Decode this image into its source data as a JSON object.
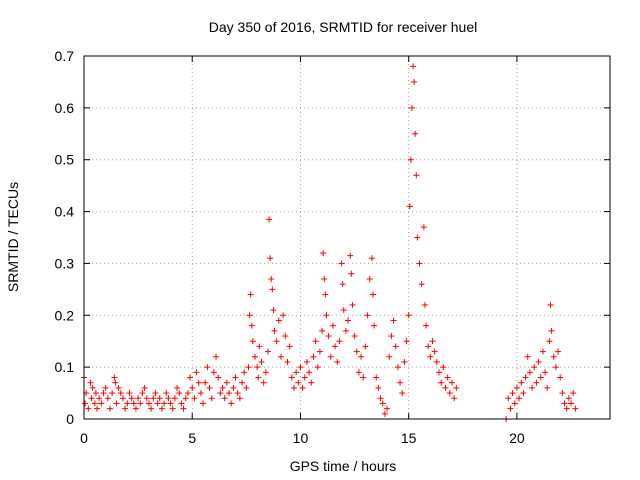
{
  "chart_data": {
    "type": "scatter",
    "title": "Day 350 of 2016, SRMTID for receiver huel",
    "xlabel": "GPS time / hours",
    "ylabel": "SRMTID / TECUs",
    "xlim": [
      0,
      24.3
    ],
    "ylim": [
      0,
      0.7
    ],
    "xticks": [
      0,
      5,
      10,
      15,
      20
    ],
    "yticks": [
      0,
      0.1,
      0.2,
      0.3,
      0.4,
      0.5,
      0.6,
      0.7
    ],
    "xtick_labels": [
      "0",
      "5",
      "10",
      "15",
      "20"
    ],
    "ytick_labels": [
      "0",
      "0.1",
      "0.2",
      "0.3",
      "0.4",
      "0.5",
      "0.6",
      "0.7"
    ],
    "grid": true,
    "marker": "+",
    "marker_color": "#ff0000",
    "series": [
      {
        "name": "SRMTID",
        "points": [
          [
            0.0,
            0.08
          ],
          [
            0.05,
            0.03
          ],
          [
            0.1,
            0.05
          ],
          [
            0.2,
            0.02
          ],
          [
            0.3,
            0.07
          ],
          [
            0.35,
            0.04
          ],
          [
            0.4,
            0.06
          ],
          [
            0.5,
            0.03
          ],
          [
            0.55,
            0.05
          ],
          [
            0.6,
            0.02
          ],
          [
            0.7,
            0.04
          ],
          [
            0.8,
            0.03
          ],
          [
            0.9,
            0.05
          ],
          [
            1.0,
            0.06
          ],
          [
            1.1,
            0.04
          ],
          [
            1.2,
            0.02
          ],
          [
            1.3,
            0.05
          ],
          [
            1.4,
            0.08
          ],
          [
            1.45,
            0.07
          ],
          [
            1.5,
            0.03
          ],
          [
            1.6,
            0.06
          ],
          [
            1.7,
            0.05
          ],
          [
            1.8,
            0.04
          ],
          [
            1.9,
            0.02
          ],
          [
            2.0,
            0.03
          ],
          [
            2.1,
            0.05
          ],
          [
            2.2,
            0.04
          ],
          [
            2.3,
            0.03
          ],
          [
            2.4,
            0.02
          ],
          [
            2.5,
            0.04
          ],
          [
            2.6,
            0.03
          ],
          [
            2.7,
            0.05
          ],
          [
            2.8,
            0.06
          ],
          [
            2.9,
            0.04
          ],
          [
            3.0,
            0.03
          ],
          [
            3.1,
            0.02
          ],
          [
            3.2,
            0.04
          ],
          [
            3.3,
            0.05
          ],
          [
            3.4,
            0.03
          ],
          [
            3.5,
            0.04
          ],
          [
            3.6,
            0.02
          ],
          [
            3.7,
            0.03
          ],
          [
            3.8,
            0.05
          ],
          [
            3.9,
            0.04
          ],
          [
            4.0,
            0.03
          ],
          [
            4.1,
            0.02
          ],
          [
            4.2,
            0.04
          ],
          [
            4.3,
            0.06
          ],
          [
            4.4,
            0.05
          ],
          [
            4.5,
            0.03
          ],
          [
            4.6,
            0.02
          ],
          [
            4.7,
            0.04
          ],
          [
            4.8,
            0.05
          ],
          [
            4.9,
            0.08
          ],
          [
            5.0,
            0.06
          ],
          [
            5.1,
            0.04
          ],
          [
            5.2,
            0.09
          ],
          [
            5.3,
            0.07
          ],
          [
            5.4,
            0.05
          ],
          [
            5.5,
            0.03
          ],
          [
            5.6,
            0.07
          ],
          [
            5.7,
            0.1
          ],
          [
            5.8,
            0.06
          ],
          [
            5.9,
            0.04
          ],
          [
            6.0,
            0.09
          ],
          [
            6.1,
            0.12
          ],
          [
            6.2,
            0.08
          ],
          [
            6.3,
            0.05
          ],
          [
            6.4,
            0.06
          ],
          [
            6.5,
            0.04
          ],
          [
            6.6,
            0.07
          ],
          [
            6.7,
            0.05
          ],
          [
            6.8,
            0.03
          ],
          [
            6.9,
            0.06
          ],
          [
            7.0,
            0.08
          ],
          [
            7.1,
            0.05
          ],
          [
            7.2,
            0.04
          ],
          [
            7.3,
            0.07
          ],
          [
            7.4,
            0.09
          ],
          [
            7.5,
            0.06
          ],
          [
            7.6,
            0.1
          ],
          [
            7.65,
            0.2
          ],
          [
            7.7,
            0.24
          ],
          [
            7.75,
            0.18
          ],
          [
            7.8,
            0.15
          ],
          [
            7.9,
            0.12
          ],
          [
            8.0,
            0.1
          ],
          [
            8.05,
            0.08
          ],
          [
            8.1,
            0.14
          ],
          [
            8.2,
            0.11
          ],
          [
            8.3,
            0.07
          ],
          [
            8.4,
            0.09
          ],
          [
            8.5,
            0.13
          ],
          [
            8.55,
            0.385
          ],
          [
            8.6,
            0.31
          ],
          [
            8.65,
            0.27
          ],
          [
            8.7,
            0.25
          ],
          [
            8.75,
            0.21
          ],
          [
            8.8,
            0.17
          ],
          [
            8.9,
            0.15
          ],
          [
            9.0,
            0.19
          ],
          [
            9.1,
            0.12
          ],
          [
            9.2,
            0.2
          ],
          [
            9.3,
            0.16
          ],
          [
            9.4,
            0.11
          ],
          [
            9.5,
            0.14
          ],
          [
            9.6,
            0.08
          ],
          [
            9.7,
            0.06
          ],
          [
            9.8,
            0.09
          ],
          [
            9.9,
            0.07
          ],
          [
            10.0,
            0.1
          ],
          [
            10.1,
            0.06
          ],
          [
            10.2,
            0.08
          ],
          [
            10.3,
            0.11
          ],
          [
            10.4,
            0.09
          ],
          [
            10.5,
            0.07
          ],
          [
            10.6,
            0.12
          ],
          [
            10.7,
            0.15
          ],
          [
            10.8,
            0.1
          ],
          [
            10.9,
            0.13
          ],
          [
            11.0,
            0.17
          ],
          [
            11.05,
            0.32
          ],
          [
            11.1,
            0.27
          ],
          [
            11.15,
            0.24
          ],
          [
            11.2,
            0.2
          ],
          [
            11.3,
            0.16
          ],
          [
            11.4,
            0.12
          ],
          [
            11.5,
            0.18
          ],
          [
            11.6,
            0.14
          ],
          [
            11.7,
            0.11
          ],
          [
            11.8,
            0.15
          ],
          [
            11.9,
            0.3
          ],
          [
            11.95,
            0.26
          ],
          [
            12.0,
            0.21
          ],
          [
            12.1,
            0.17
          ],
          [
            12.2,
            0.19
          ],
          [
            12.3,
            0.315
          ],
          [
            12.35,
            0.28
          ],
          [
            12.4,
            0.22
          ],
          [
            12.5,
            0.16
          ],
          [
            12.6,
            0.13
          ],
          [
            12.7,
            0.09
          ],
          [
            12.8,
            0.12
          ],
          [
            12.9,
            0.08
          ],
          [
            13.0,
            0.14
          ],
          [
            13.1,
            0.2
          ],
          [
            13.2,
            0.27
          ],
          [
            13.3,
            0.31
          ],
          [
            13.35,
            0.24
          ],
          [
            13.4,
            0.18
          ],
          [
            13.5,
            0.08
          ],
          [
            13.6,
            0.06
          ],
          [
            13.7,
            0.04
          ],
          [
            13.8,
            0.03
          ],
          [
            13.9,
            0.01
          ],
          [
            14.0,
            0.02
          ],
          [
            14.1,
            0.12
          ],
          [
            14.2,
            0.16
          ],
          [
            14.3,
            0.19
          ],
          [
            14.4,
            0.14
          ],
          [
            14.5,
            0.1
          ],
          [
            14.6,
            0.07
          ],
          [
            14.7,
            0.05
          ],
          [
            14.8,
            0.11
          ],
          [
            14.9,
            0.15
          ],
          [
            15.0,
            0.2
          ],
          [
            15.05,
            0.41
          ],
          [
            15.1,
            0.5
          ],
          [
            15.15,
            0.6
          ],
          [
            15.2,
            0.68
          ],
          [
            15.25,
            0.65
          ],
          [
            15.3,
            0.55
          ],
          [
            15.35,
            0.47
          ],
          [
            15.4,
            0.35
          ],
          [
            15.5,
            0.3
          ],
          [
            15.6,
            0.26
          ],
          [
            15.7,
            0.37
          ],
          [
            15.75,
            0.22
          ],
          [
            15.8,
            0.18
          ],
          [
            15.9,
            0.14
          ],
          [
            16.0,
            0.12
          ],
          [
            16.1,
            0.15
          ],
          [
            16.2,
            0.13
          ],
          [
            16.3,
            0.11
          ],
          [
            16.4,
            0.09
          ],
          [
            16.5,
            0.07
          ],
          [
            16.6,
            0.1
          ],
          [
            16.7,
            0.06
          ],
          [
            16.8,
            0.08
          ],
          [
            16.9,
            0.05
          ],
          [
            17.0,
            0.07
          ],
          [
            17.1,
            0.04
          ],
          [
            17.2,
            0.06
          ],
          [
            19.5,
            0.0
          ],
          [
            19.6,
            0.04
          ],
          [
            19.7,
            0.02
          ],
          [
            19.8,
            0.05
          ],
          [
            19.9,
            0.03
          ],
          [
            20.0,
            0.06
          ],
          [
            20.1,
            0.04
          ],
          [
            20.2,
            0.07
          ],
          [
            20.3,
            0.05
          ],
          [
            20.4,
            0.08
          ],
          [
            20.5,
            0.12
          ],
          [
            20.6,
            0.09
          ],
          [
            20.7,
            0.06
          ],
          [
            20.8,
            0.1
          ],
          [
            20.9,
            0.07
          ],
          [
            21.0,
            0.11
          ],
          [
            21.1,
            0.08
          ],
          [
            21.2,
            0.13
          ],
          [
            21.3,
            0.09
          ],
          [
            21.4,
            0.06
          ],
          [
            21.5,
            0.15
          ],
          [
            21.55,
            0.22
          ],
          [
            21.6,
            0.17
          ],
          [
            21.7,
            0.12
          ],
          [
            21.8,
            0.1
          ],
          [
            21.9,
            0.13
          ],
          [
            22.0,
            0.08
          ],
          [
            22.1,
            0.05
          ],
          [
            22.2,
            0.03
          ],
          [
            22.3,
            0.02
          ],
          [
            22.4,
            0.04
          ],
          [
            22.5,
            0.03
          ],
          [
            22.6,
            0.05
          ],
          [
            22.7,
            0.02
          ]
        ]
      }
    ]
  }
}
